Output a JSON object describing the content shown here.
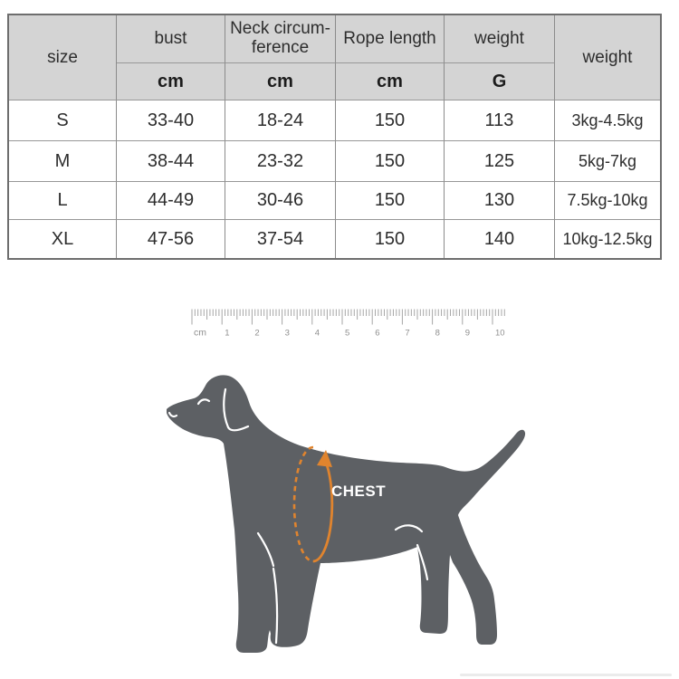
{
  "table": {
    "header": {
      "size": "size",
      "bust": "bust",
      "neck": "Neck circum-\nference",
      "rope": "Rope length",
      "weight_g": "weight",
      "weight_range": "weight",
      "unit_cm": "cm",
      "unit_g": "G"
    },
    "rows": [
      [
        "S",
        "33-40",
        "18-24",
        "150",
        "113",
        "3kg-4.5kg"
      ],
      [
        "M",
        "38-44",
        "23-32",
        "150",
        "125",
        "5kg-7kg"
      ],
      [
        "L",
        "44-49",
        "30-46",
        "150",
        "130",
        "7.5kg-10kg"
      ],
      [
        "XL",
        "47-56",
        "37-54",
        "150",
        "140",
        "10kg-12.5kg"
      ]
    ]
  },
  "ruler": {
    "unit_label": "cm",
    "numbers": [
      "1",
      "2",
      "3",
      "4",
      "5",
      "6",
      "7",
      "8",
      "9",
      "10"
    ]
  },
  "diagram": {
    "chest_label": "CHEST"
  },
  "colors": {
    "accent_orange": "#E0842E",
    "dog_gray": "#5D6064",
    "header_gray": "#D4D4D4",
    "border_gray": "#6E6E6E",
    "ruler_tick_gray": "#A6A6A6",
    "ruler_text_gray": "#8F8F8F",
    "text_dark": "#2D2D2D",
    "detail_white": "#FFFFFF"
  }
}
